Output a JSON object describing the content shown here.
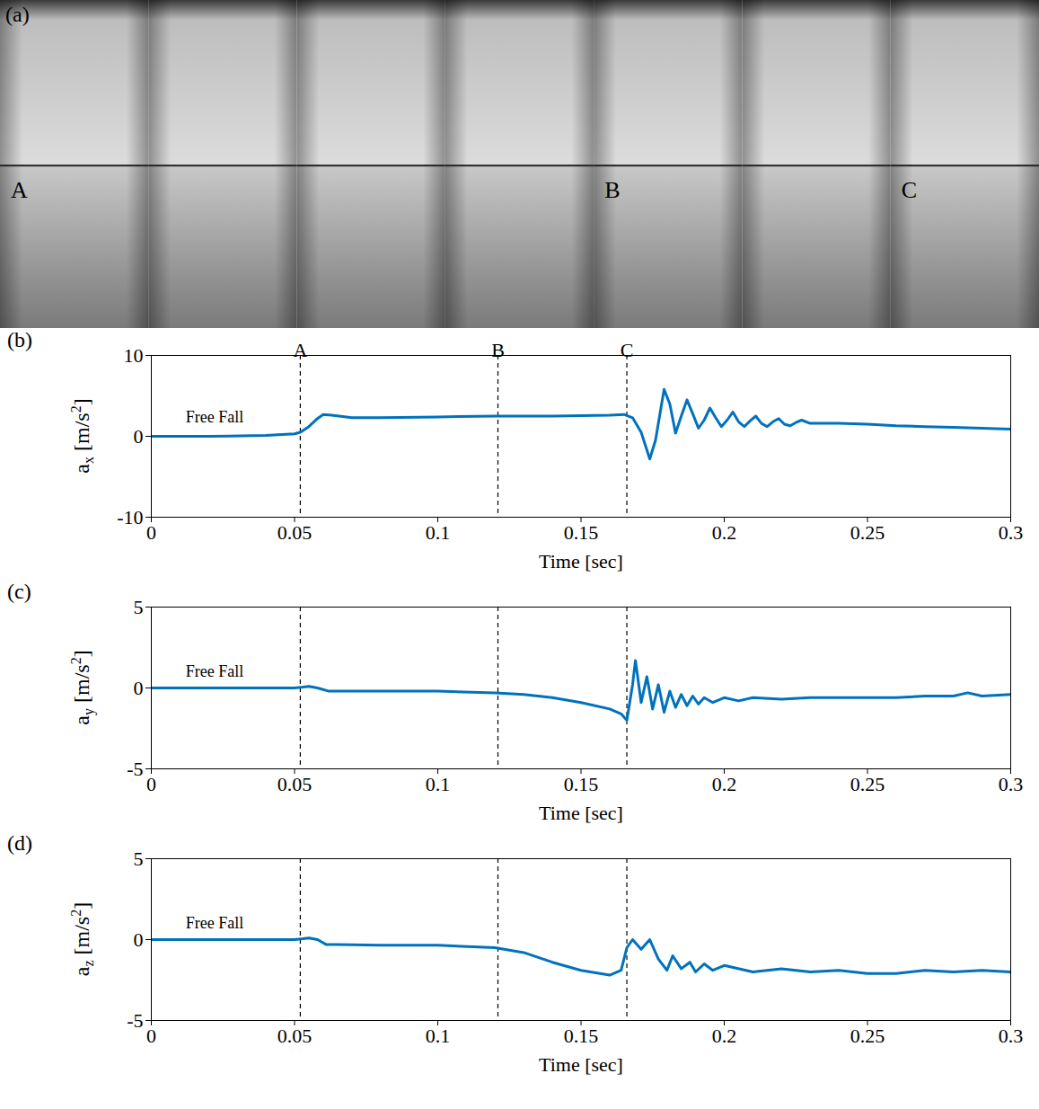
{
  "panel_a": {
    "label": "(a)",
    "frames": [
      "A",
      null,
      null,
      null,
      "B",
      null,
      "C"
    ]
  },
  "chart_data": [
    {
      "type": "line",
      "panel": "(b)",
      "x_label": "Time [sec]",
      "y_label": [
        {
          "text": "a"
        },
        {
          "text": "x",
          "sub": true
        },
        {
          "text": " [m/s"
        },
        {
          "text": "2",
          "sup": true
        },
        {
          "text": "]"
        }
      ],
      "xlim": [
        0,
        0.3
      ],
      "xticks": [
        0,
        0.05,
        0.1,
        0.15,
        0.2,
        0.25,
        0.3
      ],
      "ylim": [
        -10,
        10
      ],
      "yticks": [
        -10,
        0,
        10
      ],
      "grid": false,
      "series": [
        {
          "color": "#0072bd",
          "x": [
            0,
            0.02,
            0.04,
            0.05,
            0.052,
            0.055,
            0.058,
            0.06,
            0.063,
            0.07,
            0.08,
            0.1,
            0.12,
            0.14,
            0.16,
            0.165,
            0.168,
            0.171,
            0.174,
            0.176,
            0.179,
            0.181,
            0.183,
            0.185,
            0.187,
            0.189,
            0.191,
            0.193,
            0.195,
            0.197,
            0.199,
            0.201,
            0.203,
            0.205,
            0.207,
            0.209,
            0.211,
            0.213,
            0.215,
            0.217,
            0.219,
            0.221,
            0.223,
            0.225,
            0.227,
            0.23,
            0.24,
            0.25,
            0.26,
            0.27,
            0.28,
            0.29,
            0.3
          ],
          "values": [
            0,
            0,
            0.1,
            0.3,
            0.5,
            1.2,
            2.2,
            2.7,
            2.6,
            2.3,
            2.3,
            2.4,
            2.5,
            2.5,
            2.6,
            2.7,
            2.3,
            0.5,
            -2.8,
            -0.5,
            5.8,
            4,
            0.4,
            2.5,
            4.5,
            2.8,
            1,
            2,
            3.5,
            2.3,
            1.2,
            2,
            3,
            1.8,
            1.2,
            1.9,
            2.5,
            1.6,
            1.2,
            1.8,
            2.2,
            1.5,
            1.3,
            1.7,
            2,
            1.6,
            1.6,
            1.5,
            1.3,
            1.2,
            1.1,
            1,
            0.9
          ]
        }
      ],
      "events": [
        {
          "x": 0.052,
          "label": "A"
        },
        {
          "x": 0.121,
          "label": "B"
        },
        {
          "x": 0.166,
          "label": "C"
        }
      ],
      "annotations": [
        {
          "text": "Free Fall",
          "x": 0.012,
          "y": 2.4
        }
      ]
    },
    {
      "type": "line",
      "panel": "(c)",
      "x_label": "Time [sec]",
      "y_label": [
        {
          "text": "a"
        },
        {
          "text": "y",
          "sub": true
        },
        {
          "text": " [m/s"
        },
        {
          "text": "2",
          "sup": true
        },
        {
          "text": "]"
        }
      ],
      "xlim": [
        0,
        0.3
      ],
      "xticks": [
        0,
        0.05,
        0.1,
        0.15,
        0.2,
        0.25,
        0.3
      ],
      "ylim": [
        -5,
        5
      ],
      "yticks": [
        -5,
        0,
        5
      ],
      "grid": false,
      "series": [
        {
          "color": "#0072bd",
          "x": [
            0,
            0.03,
            0.05,
            0.053,
            0.055,
            0.058,
            0.062,
            0.08,
            0.1,
            0.12,
            0.13,
            0.14,
            0.15,
            0.16,
            0.164,
            0.166,
            0.168,
            0.169,
            0.171,
            0.173,
            0.175,
            0.177,
            0.179,
            0.181,
            0.183,
            0.185,
            0.187,
            0.189,
            0.191,
            0.193,
            0.196,
            0.2,
            0.205,
            0.21,
            0.22,
            0.23,
            0.24,
            0.25,
            0.26,
            0.27,
            0.28,
            0.285,
            0.29,
            0.3
          ],
          "values": [
            0,
            0,
            0,
            0.05,
            0.1,
            0,
            -0.2,
            -0.2,
            -0.2,
            -0.3,
            -0.4,
            -0.6,
            -0.9,
            -1.3,
            -1.6,
            -2,
            0.2,
            1.7,
            -0.9,
            0.7,
            -1.3,
            0.2,
            -1.5,
            -0.2,
            -1.2,
            -0.4,
            -1.1,
            -0.5,
            -1,
            -0.6,
            -0.9,
            -0.6,
            -0.8,
            -0.6,
            -0.7,
            -0.6,
            -0.6,
            -0.6,
            -0.6,
            -0.5,
            -0.5,
            -0.3,
            -0.5,
            -0.4
          ]
        }
      ],
      "events": [
        {
          "x": 0.052
        },
        {
          "x": 0.121
        },
        {
          "x": 0.166
        }
      ],
      "annotations": [
        {
          "text": "Free Fall",
          "x": 0.012,
          "y": 1
        }
      ]
    },
    {
      "type": "line",
      "panel": "(d)",
      "x_label": "Time [sec]",
      "y_label": [
        {
          "text": "a"
        },
        {
          "text": "z",
          "sub": true
        },
        {
          "text": " [m/s"
        },
        {
          "text": "2",
          "sup": true
        },
        {
          "text": "]"
        }
      ],
      "xlim": [
        0,
        0.3
      ],
      "xticks": [
        0,
        0.05,
        0.1,
        0.15,
        0.2,
        0.25,
        0.3
      ],
      "ylim": [
        -5,
        5
      ],
      "yticks": [
        -5,
        0,
        5
      ],
      "grid": false,
      "series": [
        {
          "color": "#0072bd",
          "x": [
            0,
            0.03,
            0.05,
            0.053,
            0.055,
            0.058,
            0.061,
            0.065,
            0.08,
            0.1,
            0.12,
            0.13,
            0.14,
            0.15,
            0.16,
            0.164,
            0.166,
            0.168,
            0.171,
            0.174,
            0.177,
            0.18,
            0.182,
            0.185,
            0.188,
            0.19,
            0.193,
            0.196,
            0.2,
            0.21,
            0.22,
            0.23,
            0.24,
            0.25,
            0.26,
            0.27,
            0.28,
            0.29,
            0.3
          ],
          "values": [
            0,
            0,
            0,
            0.05,
            0.1,
            0,
            -0.3,
            -0.3,
            -0.35,
            -0.35,
            -0.5,
            -0.8,
            -1.4,
            -1.9,
            -2.2,
            -1.9,
            -0.5,
            0,
            -0.6,
            0,
            -1.2,
            -1.9,
            -1,
            -1.8,
            -1.4,
            -2,
            -1.5,
            -1.9,
            -1.6,
            -2,
            -1.8,
            -2,
            -1.9,
            -2.1,
            -2.1,
            -1.9,
            -2,
            -1.9,
            -2
          ]
        }
      ],
      "events": [
        {
          "x": 0.052
        },
        {
          "x": 0.121
        },
        {
          "x": 0.166
        }
      ],
      "annotations": [
        {
          "text": "Free Fall",
          "x": 0.012,
          "y": 1
        }
      ]
    }
  ]
}
